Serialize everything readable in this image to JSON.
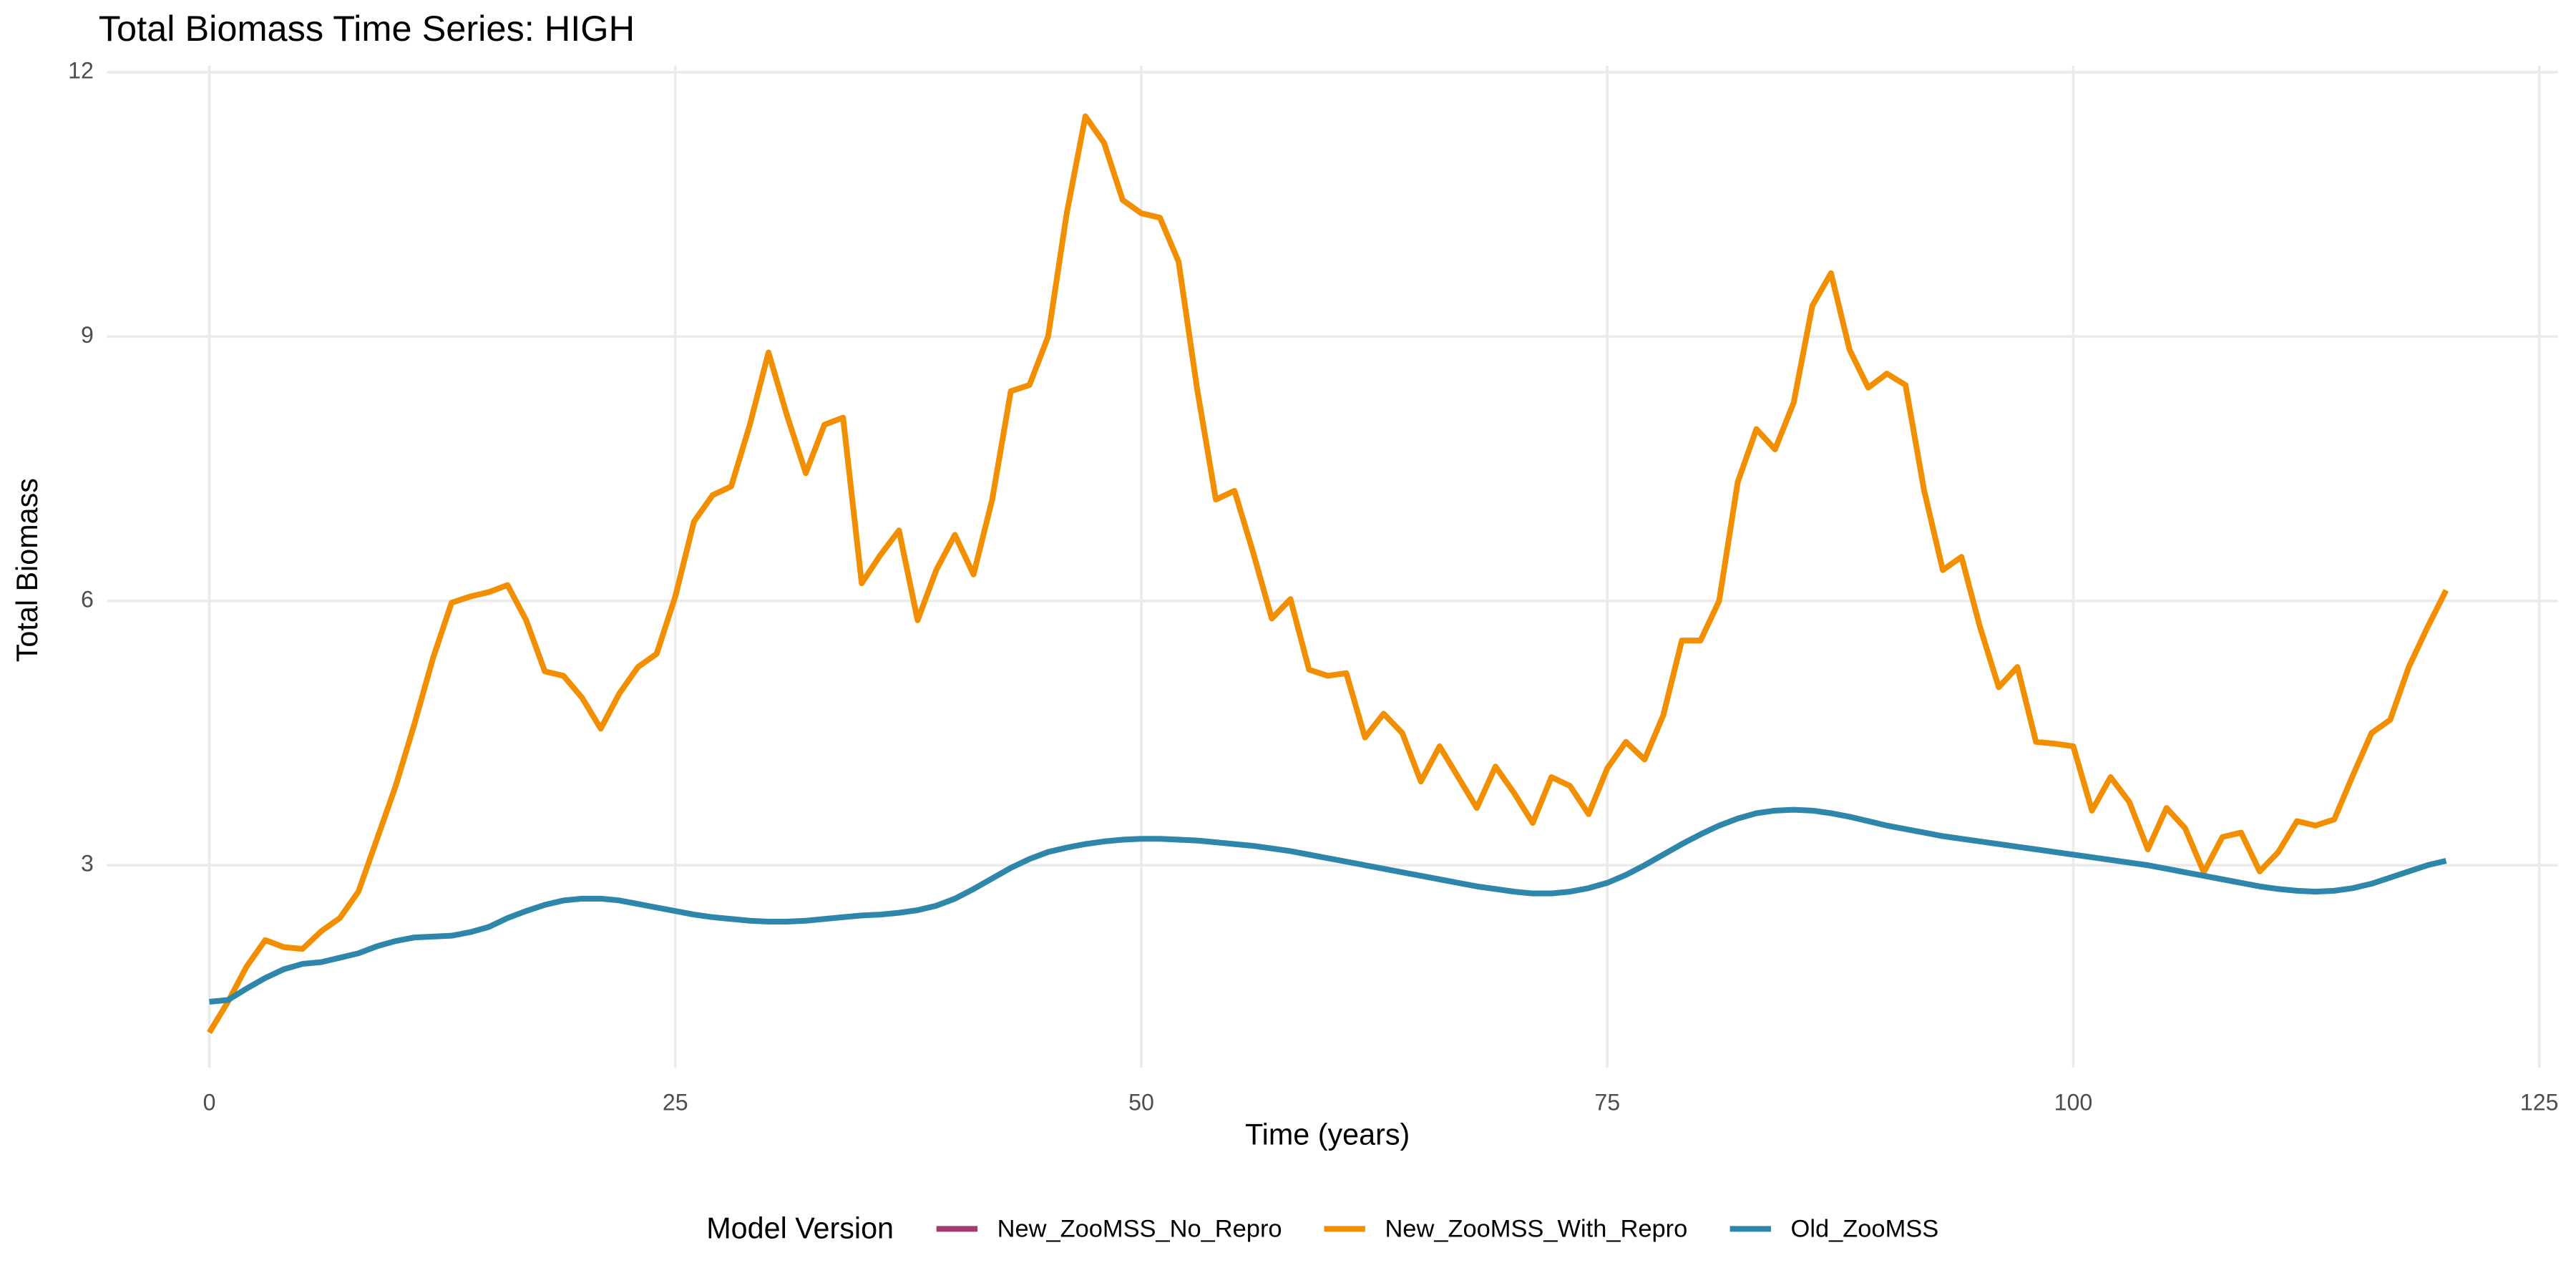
{
  "chart_data": {
    "type": "line",
    "title": "Total Biomass Time Series: HIGH",
    "xlabel": "Time (years)",
    "ylabel": "Total Biomass",
    "legend_title": "Model Version",
    "legend_position": "bottom",
    "grid": true,
    "xlim": [
      -5.5,
      126
    ],
    "ylim": [
      0.7,
      12
    ],
    "xticks": [
      0,
      25,
      50,
      75,
      100,
      125
    ],
    "yticks": [
      3,
      6,
      9,
      12
    ],
    "x": [
      0,
      1,
      2,
      3,
      4,
      5,
      6,
      7,
      8,
      9,
      10,
      11,
      12,
      13,
      14,
      15,
      16,
      17,
      18,
      19,
      20,
      21,
      22,
      23,
      24,
      25,
      26,
      27,
      28,
      29,
      30,
      31,
      32,
      33,
      34,
      35,
      36,
      37,
      38,
      39,
      40,
      41,
      42,
      43,
      44,
      45,
      46,
      47,
      48,
      49,
      50,
      51,
      52,
      53,
      54,
      55,
      56,
      57,
      58,
      59,
      60,
      61,
      62,
      63,
      64,
      65,
      66,
      67,
      68,
      69,
      70,
      71,
      72,
      73,
      74,
      75,
      76,
      77,
      78,
      79,
      80,
      81,
      82,
      83,
      84,
      85,
      86,
      87,
      88,
      89,
      90,
      91,
      92,
      93,
      94,
      95,
      96,
      97,
      98,
      99,
      100,
      101,
      102,
      103,
      104,
      105,
      106,
      107,
      108,
      109,
      110,
      111,
      112,
      113,
      114,
      115,
      116,
      117,
      118,
      119,
      120
    ],
    "series": [
      {
        "name": "New_ZooMSS_No_Repro",
        "color": "#a23b72",
        "values": [
          null,
          null,
          null,
          null,
          null,
          null,
          null,
          null,
          null,
          null,
          null,
          null,
          null,
          null,
          null,
          null,
          null,
          null,
          null,
          null,
          null,
          null,
          null,
          null,
          null,
          null,
          null,
          null,
          null,
          null,
          null,
          null,
          null,
          null,
          null,
          null,
          null,
          null,
          null,
          null,
          null,
          null,
          null,
          null,
          null,
          null,
          null,
          null,
          null,
          null,
          null,
          null,
          null,
          null,
          null,
          null,
          null,
          null,
          null,
          null,
          null,
          null,
          null,
          null,
          null,
          null,
          null,
          null,
          null,
          null,
          null,
          null,
          null,
          null,
          null,
          null,
          null,
          null,
          null,
          null,
          null,
          null,
          null,
          null,
          null,
          null,
          null,
          null,
          null,
          null,
          null,
          null,
          null,
          null,
          null,
          null,
          null,
          null,
          null,
          null,
          null,
          null,
          null,
          null,
          null,
          null,
          null,
          null,
          null,
          null,
          null,
          null,
          null,
          null,
          null,
          null,
          null,
          null,
          null,
          null,
          null
        ]
      },
      {
        "name": "New_ZooMSS_With_Repro",
        "color": "#f18f01",
        "values": [
          1.1,
          1.45,
          1.85,
          2.15,
          2.07,
          2.05,
          2.25,
          2.4,
          2.7,
          3.3,
          3.9,
          4.6,
          5.35,
          5.98,
          6.05,
          6.1,
          6.18,
          5.78,
          5.2,
          5.15,
          4.9,
          4.55,
          4.95,
          5.25,
          5.4,
          6.05,
          6.9,
          7.2,
          7.3,
          8.0,
          8.82,
          8.1,
          7.45,
          8.0,
          8.08,
          6.2,
          6.52,
          6.8,
          5.78,
          6.35,
          6.75,
          6.3,
          7.15,
          8.38,
          8.45,
          9.0,
          10.4,
          11.5,
          11.2,
          10.55,
          10.4,
          10.35,
          9.85,
          8.4,
          7.15,
          7.25,
          6.55,
          5.8,
          6.02,
          5.22,
          5.15,
          5.18,
          4.45,
          4.72,
          4.5,
          3.95,
          4.35,
          4.0,
          3.65,
          4.12,
          3.82,
          3.48,
          4.0,
          3.9,
          3.58,
          4.1,
          4.4,
          4.2,
          4.7,
          5.55,
          5.55,
          6.0,
          7.35,
          7.95,
          7.72,
          8.25,
          9.35,
          9.72,
          8.85,
          8.42,
          8.58,
          8.45,
          7.25,
          6.35,
          6.5,
          5.7,
          5.02,
          5.25,
          4.4,
          4.38,
          4.35,
          3.62,
          4.0,
          3.72,
          3.18,
          3.65,
          3.42,
          2.92,
          3.32,
          3.37,
          2.93,
          3.15,
          3.5,
          3.45,
          3.52,
          4.02,
          4.5,
          4.65,
          5.25,
          5.7,
          6.12
        ]
      },
      {
        "name": "Old_ZooMSS",
        "color": "#2e86ab",
        "values": [
          1.45,
          1.47,
          1.6,
          1.72,
          1.82,
          1.88,
          1.9,
          1.95,
          2.0,
          2.08,
          2.14,
          2.18,
          2.19,
          2.2,
          2.24,
          2.3,
          2.4,
          2.48,
          2.55,
          2.6,
          2.62,
          2.62,
          2.6,
          2.56,
          2.52,
          2.48,
          2.44,
          2.41,
          2.39,
          2.37,
          2.36,
          2.36,
          2.37,
          2.39,
          2.41,
          2.43,
          2.44,
          2.46,
          2.49,
          2.54,
          2.62,
          2.73,
          2.85,
          2.97,
          3.07,
          3.15,
          3.2,
          3.24,
          3.27,
          3.29,
          3.3,
          3.3,
          3.29,
          3.28,
          3.26,
          3.24,
          3.22,
          3.19,
          3.16,
          3.12,
          3.08,
          3.04,
          3.0,
          2.96,
          2.92,
          2.88,
          2.84,
          2.8,
          2.76,
          2.73,
          2.7,
          2.68,
          2.68,
          2.7,
          2.74,
          2.8,
          2.89,
          3.0,
          3.12,
          3.24,
          3.35,
          3.45,
          3.53,
          3.59,
          3.62,
          3.63,
          3.62,
          3.59,
          3.55,
          3.5,
          3.45,
          3.41,
          3.37,
          3.33,
          3.3,
          3.27,
          3.24,
          3.21,
          3.18,
          3.15,
          3.12,
          3.09,
          3.06,
          3.03,
          3.0,
          2.96,
          2.92,
          2.88,
          2.84,
          2.8,
          2.76,
          2.73,
          2.71,
          2.7,
          2.71,
          2.74,
          2.79,
          2.86,
          2.93,
          3.0,
          3.05
        ]
      }
    ]
  }
}
